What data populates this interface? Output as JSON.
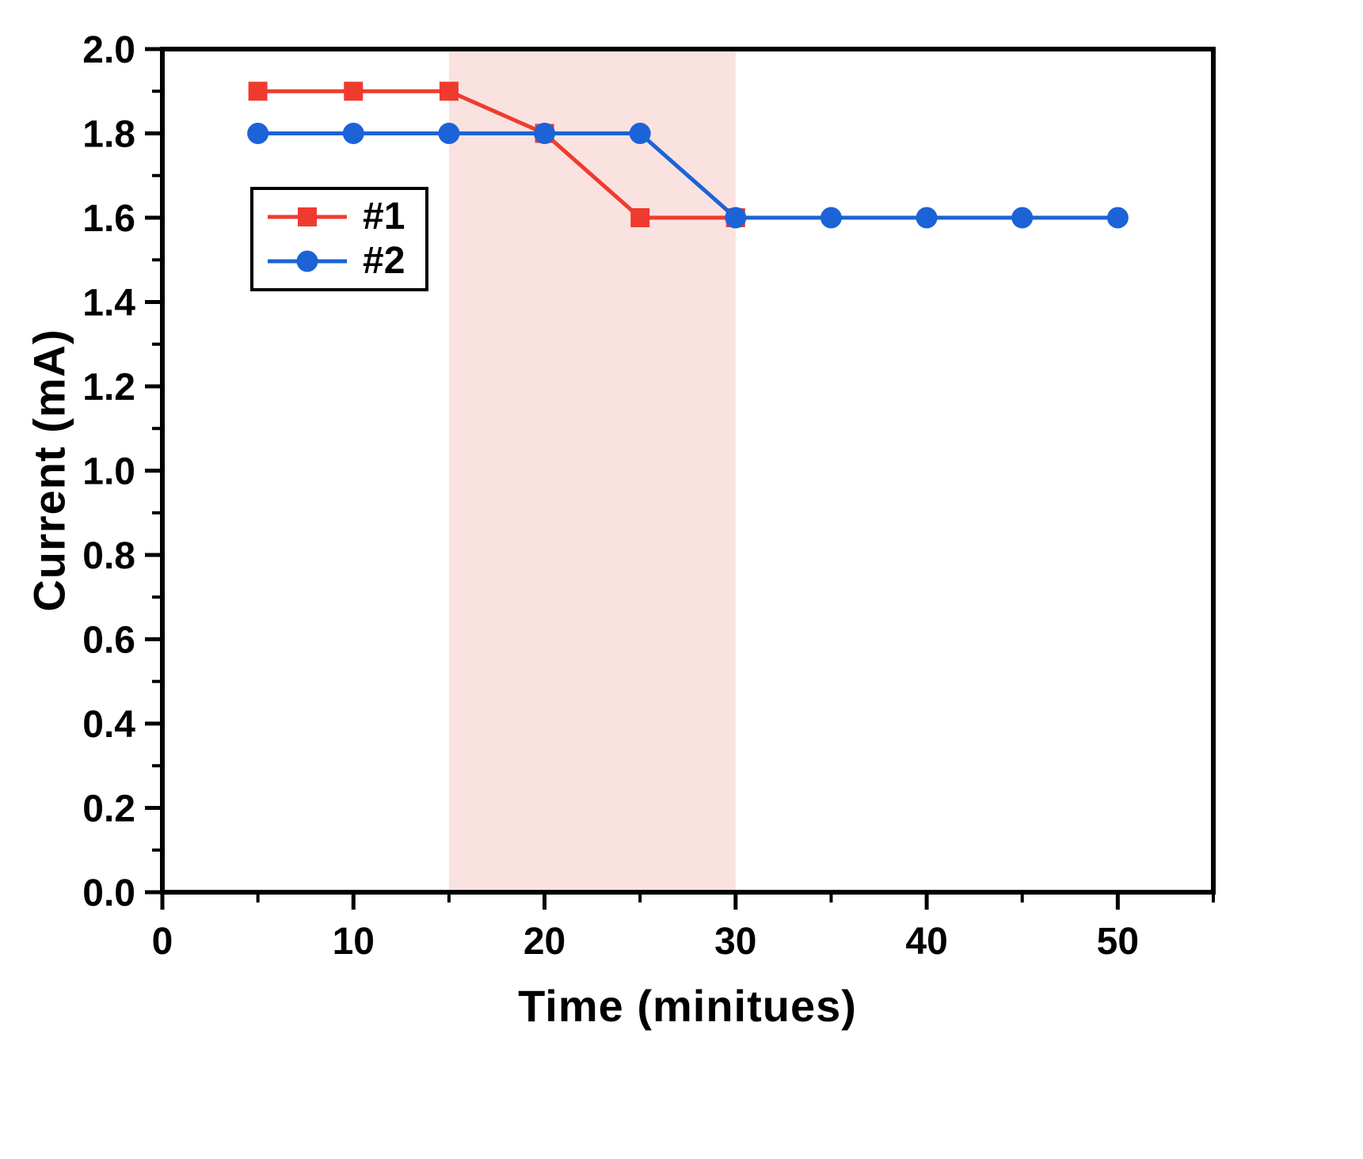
{
  "chart_data": {
    "type": "line",
    "title": "",
    "xlabel": "Time (minitues)",
    "ylabel": "Current (mA)",
    "xlim": [
      0,
      55
    ],
    "ylim": [
      0,
      2.0
    ],
    "x_major_ticks": [
      0,
      10,
      20,
      30,
      40,
      50
    ],
    "x_minor_step": 5,
    "y_major_ticks": [
      0.0,
      0.2,
      0.4,
      0.6,
      0.8,
      1.0,
      1.2,
      1.4,
      1.6,
      1.8,
      2.0
    ],
    "y_minor_step": 0.1,
    "grid": false,
    "legend_position": "upper-left-inside",
    "frame_color": "#000000",
    "shaded_region": {
      "x0": 15,
      "x1": 30,
      "color": "#f6cfcd",
      "opacity": 0.6
    },
    "series": [
      {
        "label": "#1",
        "color": "#ef3b2f",
        "marker": "square",
        "x": [
          5,
          10,
          15,
          20,
          25,
          30
        ],
        "y": [
          1.9,
          1.9,
          1.9,
          1.8,
          1.6,
          1.6
        ]
      },
      {
        "label": "#2",
        "color": "#1b63d6",
        "marker": "circle",
        "x": [
          5,
          10,
          15,
          20,
          25,
          30,
          35,
          40,
          45,
          50
        ],
        "y": [
          1.8,
          1.8,
          1.8,
          1.8,
          1.8,
          1.6,
          1.6,
          1.6,
          1.6,
          1.6
        ]
      }
    ]
  }
}
